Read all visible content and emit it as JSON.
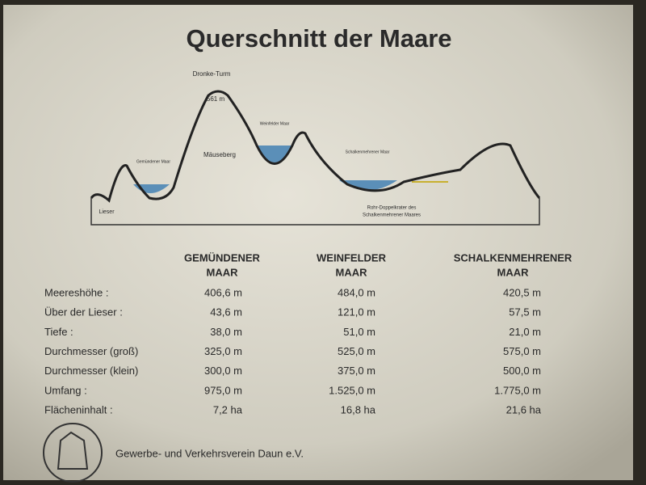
{
  "title": "Querschnitt der Maare",
  "diagram": {
    "labels": [
      {
        "text": "Dronke-Turm"
      },
      {
        "text": "561 m"
      },
      {
        "text": "Gemündener Maar"
      },
      {
        "text": "Mäuseberg"
      },
      {
        "text": "Weinfelder Maar"
      },
      {
        "text": "Schalkenmehrener Maar"
      },
      {
        "text": "Lieser"
      },
      {
        "text": "Rohr-Doppelkrater des"
      },
      {
        "text": "Schalkenmehrener Maares"
      }
    ]
  },
  "table": {
    "headers": [
      [
        "GEMÜNDENER",
        "MAAR"
      ],
      [
        "WEINFELDER",
        "MAAR"
      ],
      [
        "SCHALKENMEHRENER",
        "MAAR"
      ]
    ],
    "rows": [
      [
        "Meereshöhe :",
        "406,6 m",
        "484,0 m",
        "420,5 m"
      ],
      [
        "Über der Lieser :",
        "43,6 m",
        "121,0 m",
        "57,5 m"
      ],
      [
        "Tiefe :",
        "38,0 m",
        "51,0 m",
        "21,0 m"
      ],
      [
        "Durchmesser (groß)",
        "325,0 m",
        "525,0 m",
        "575,0 m"
      ],
      [
        "Durchmesser (klein)",
        "300,0 m",
        "375,0 m",
        "500,0 m"
      ],
      [
        "Umfang :",
        "975,0 m",
        "1.525,0 m",
        "1.775,0 m"
      ],
      [
        "Flächeninhalt :",
        "7,2 ha",
        "16,8 ha",
        "21,6 ha"
      ]
    ]
  },
  "footer": "Gewerbe- und Verkehrsverein Daun e.V."
}
